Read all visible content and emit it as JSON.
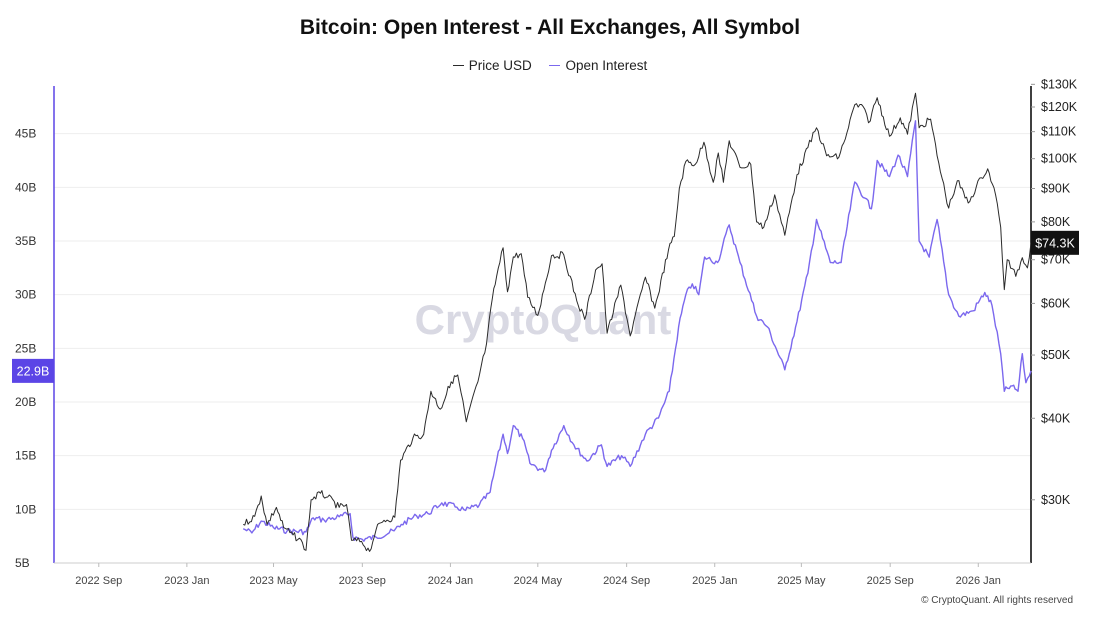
{
  "colors": {
    "price": "#2b2b2b",
    "open_interest": "#7b68ee",
    "accent": "#5b45e6",
    "price_badge": "#111111",
    "grid": "#eeeeee",
    "watermark": "#d9d9e3"
  },
  "watermark": "CryptoQuant",
  "copyright": "© CryptoQuant. All rights reserved",
  "chart_data": {
    "type": "line",
    "title": "Bitcoin: Open Interest - All Exchanges, All Symbol",
    "legend_position": "top-center",
    "grid": "horizontal",
    "x_range": [
      "2022-07-01",
      "2026-03-15"
    ],
    "x_tick_labels": [
      "2022 Sep",
      "2023 Jan",
      "2023 May",
      "2023 Sep",
      "2024 Jan",
      "2024 May",
      "2024 Sep",
      "2025 Jan",
      "2025 May",
      "2025 Sep",
      "2026 Jan"
    ],
    "x_tick_dates": [
      "2022-09-01",
      "2023-01-01",
      "2023-05-01",
      "2023-09-01",
      "2024-01-01",
      "2024-05-01",
      "2024-09-01",
      "2025-01-01",
      "2025-05-01",
      "2025-09-01",
      "2026-01-01"
    ],
    "y_left": {
      "min": 5,
      "max": 50,
      "unit": "B",
      "ticks": [
        5,
        10,
        15,
        20,
        25,
        30,
        35,
        40,
        45
      ],
      "tick_labels": [
        "5B",
        "10B",
        "15B",
        "20B",
        "25B",
        "30B",
        "35B",
        "40B",
        "45B"
      ],
      "current_value_label": "22.9B",
      "current_value": 22.9
    },
    "y_right": {
      "scale": "log",
      "min": 24000,
      "max": 132000,
      "ticks": [
        30000,
        40000,
        50000,
        60000,
        70000,
        80000,
        90000,
        100000,
        110000,
        120000,
        130000
      ],
      "tick_labels": [
        "$30K",
        "$40K",
        "$50K",
        "$60K",
        "$70K",
        "$80K",
        "$90K",
        "$100K",
        "$110K",
        "$120K",
        "$130K"
      ],
      "current_value_label": "$74.3K",
      "current_value": 74300
    },
    "series": [
      {
        "name": "Price USD",
        "axis": "right",
        "points": [
          [
            "2023-03-20",
            27500
          ],
          [
            "2023-04-05",
            28300
          ],
          [
            "2023-04-14",
            30400
          ],
          [
            "2023-04-22",
            27500
          ],
          [
            "2023-05-05",
            29200
          ],
          [
            "2023-05-15",
            27200
          ],
          [
            "2023-05-28",
            26500
          ],
          [
            "2023-06-10",
            25800
          ],
          [
            "2023-06-15",
            25100
          ],
          [
            "2023-06-22",
            30000
          ],
          [
            "2023-07-05",
            30700
          ],
          [
            "2023-07-15",
            30300
          ],
          [
            "2023-07-31",
            29200
          ],
          [
            "2023-08-10",
            29500
          ],
          [
            "2023-08-17",
            26000
          ],
          [
            "2023-08-31",
            25900
          ],
          [
            "2023-09-11",
            25000
          ],
          [
            "2023-09-20",
            27000
          ],
          [
            "2023-10-01",
            27900
          ],
          [
            "2023-10-16",
            28200
          ],
          [
            "2023-10-24",
            34500
          ],
          [
            "2023-11-10",
            37300
          ],
          [
            "2023-11-25",
            37800
          ],
          [
            "2023-12-05",
            44000
          ],
          [
            "2023-12-18",
            41300
          ],
          [
            "2024-01-02",
            45500
          ],
          [
            "2024-01-11",
            46600
          ],
          [
            "2024-01-23",
            39500
          ],
          [
            "2024-02-08",
            45500
          ],
          [
            "2024-02-20",
            52000
          ],
          [
            "2024-02-28",
            61000
          ],
          [
            "2024-03-05",
            66000
          ],
          [
            "2024-03-14",
            73000
          ],
          [
            "2024-03-20",
            62500
          ],
          [
            "2024-03-28",
            70700
          ],
          [
            "2024-04-08",
            71500
          ],
          [
            "2024-04-17",
            61300
          ],
          [
            "2024-05-01",
            57500
          ],
          [
            "2024-05-20",
            71000
          ],
          [
            "2024-06-06",
            71200
          ],
          [
            "2024-06-24",
            60500
          ],
          [
            "2024-07-05",
            56700
          ],
          [
            "2024-07-20",
            67500
          ],
          [
            "2024-07-29",
            69000
          ],
          [
            "2024-08-05",
            54000
          ],
          [
            "2024-08-24",
            64000
          ],
          [
            "2024-09-06",
            53500
          ],
          [
            "2024-09-27",
            65800
          ],
          [
            "2024-10-10",
            59000
          ],
          [
            "2024-10-29",
            72500
          ],
          [
            "2024-11-06",
            76000
          ],
          [
            "2024-11-13",
            90000
          ],
          [
            "2024-11-22",
            99000
          ],
          [
            "2024-12-05",
            98000
          ],
          [
            "2024-12-17",
            106000
          ],
          [
            "2024-12-30",
            92000
          ],
          [
            "2025-01-06",
            102000
          ],
          [
            "2025-01-13",
            92000
          ],
          [
            "2025-01-21",
            106500
          ],
          [
            "2025-02-05",
            97000
          ],
          [
            "2025-02-20",
            98000
          ],
          [
            "2025-02-28",
            80000
          ],
          [
            "2025-03-10",
            78500
          ],
          [
            "2025-03-25",
            88000
          ],
          [
            "2025-04-08",
            76300
          ],
          [
            "2025-04-25",
            94500
          ],
          [
            "2025-05-10",
            104000
          ],
          [
            "2025-05-22",
            111500
          ],
          [
            "2025-06-05",
            101000
          ],
          [
            "2025-06-22",
            100500
          ],
          [
            "2025-07-03",
            109500
          ],
          [
            "2025-07-14",
            121000
          ],
          [
            "2025-07-28",
            119000
          ],
          [
            "2025-08-02",
            113500
          ],
          [
            "2025-08-14",
            124000
          ],
          [
            "2025-08-31",
            108200
          ],
          [
            "2025-09-15",
            115500
          ],
          [
            "2025-09-25",
            109000
          ],
          [
            "2025-10-06",
            126000
          ],
          [
            "2025-10-11",
            111500
          ],
          [
            "2025-10-27",
            115000
          ],
          [
            "2025-11-05",
            101000
          ],
          [
            "2025-11-21",
            84000
          ],
          [
            "2025-12-03",
            92500
          ],
          [
            "2025-12-18",
            85500
          ],
          [
            "2026-01-05",
            93500
          ],
          [
            "2026-01-14",
            96500
          ],
          [
            "2026-01-25",
            88000
          ],
          [
            "2026-02-01",
            78500
          ],
          [
            "2026-02-06",
            63000
          ],
          [
            "2026-02-10",
            70000
          ],
          [
            "2026-02-22",
            66000
          ],
          [
            "2026-03-03",
            70500
          ],
          [
            "2026-03-10",
            68000
          ],
          [
            "2026-03-15",
            74300
          ]
        ]
      },
      {
        "name": "Open Interest",
        "axis": "left",
        "points": [
          [
            "2023-03-20",
            8.2
          ],
          [
            "2023-04-01",
            7.8
          ],
          [
            "2023-04-14",
            8.9
          ],
          [
            "2023-05-01",
            8.3
          ],
          [
            "2023-05-20",
            8.0
          ],
          [
            "2023-06-15",
            7.9
          ],
          [
            "2023-06-25",
            9.2
          ],
          [
            "2023-07-10",
            9.0
          ],
          [
            "2023-07-31",
            9.3
          ],
          [
            "2023-08-15",
            9.6
          ],
          [
            "2023-08-19",
            7.4
          ],
          [
            "2023-09-01",
            7.2
          ],
          [
            "2023-09-20",
            7.4
          ],
          [
            "2023-10-15",
            8.0
          ],
          [
            "2023-10-25",
            8.6
          ],
          [
            "2023-11-15",
            9.4
          ],
          [
            "2023-12-01",
            9.6
          ],
          [
            "2023-12-20",
            10.6
          ],
          [
            "2024-01-10",
            10.2
          ],
          [
            "2024-01-22",
            9.9
          ],
          [
            "2024-02-10",
            10.4
          ],
          [
            "2024-02-25",
            11.6
          ],
          [
            "2024-03-05",
            14.5
          ],
          [
            "2024-03-14",
            17.0
          ],
          [
            "2024-03-20",
            15.2
          ],
          [
            "2024-03-28",
            17.8
          ],
          [
            "2024-04-10",
            16.6
          ],
          [
            "2024-04-20",
            14.3
          ],
          [
            "2024-05-10",
            13.5
          ],
          [
            "2024-05-20",
            15.5
          ],
          [
            "2024-06-06",
            17.8
          ],
          [
            "2024-06-20",
            16.0
          ],
          [
            "2024-07-08",
            14.5
          ],
          [
            "2024-07-28",
            16.0
          ],
          [
            "2024-08-05",
            14.0
          ],
          [
            "2024-08-25",
            15.0
          ],
          [
            "2024-09-06",
            14.0
          ],
          [
            "2024-09-27",
            17.0
          ],
          [
            "2024-10-15",
            18.5
          ],
          [
            "2024-10-30",
            21.0
          ],
          [
            "2024-11-12",
            27.0
          ],
          [
            "2024-11-22",
            30.0
          ],
          [
            "2024-12-01",
            31.0
          ],
          [
            "2024-12-10",
            30.0
          ],
          [
            "2024-12-18",
            33.5
          ],
          [
            "2025-01-05",
            33.0
          ],
          [
            "2025-01-21",
            36.5
          ],
          [
            "2025-02-05",
            33.0
          ],
          [
            "2025-02-28",
            28.0
          ],
          [
            "2025-03-15",
            27.0
          ],
          [
            "2025-04-08",
            23.0
          ],
          [
            "2025-04-25",
            27.5
          ],
          [
            "2025-05-10",
            32.0
          ],
          [
            "2025-05-22",
            37.0
          ],
          [
            "2025-06-10",
            33.0
          ],
          [
            "2025-06-25",
            33.0
          ],
          [
            "2025-07-14",
            40.5
          ],
          [
            "2025-07-28",
            39.0
          ],
          [
            "2025-08-06",
            38.0
          ],
          [
            "2025-08-14",
            42.5
          ],
          [
            "2025-08-31",
            41.0
          ],
          [
            "2025-09-12",
            43.0
          ],
          [
            "2025-09-25",
            41.0
          ],
          [
            "2025-10-06",
            46.2
          ],
          [
            "2025-10-11",
            35.0
          ],
          [
            "2025-10-25",
            33.5
          ],
          [
            "2025-11-05",
            37.0
          ],
          [
            "2025-11-21",
            30.0
          ],
          [
            "2025-12-05",
            28.0
          ],
          [
            "2025-12-25",
            28.5
          ],
          [
            "2026-01-10",
            30.2
          ],
          [
            "2026-01-20",
            29.0
          ],
          [
            "2026-02-01",
            24.5
          ],
          [
            "2026-02-06",
            21.0
          ],
          [
            "2026-02-15",
            21.5
          ],
          [
            "2026-02-25",
            21.0
          ],
          [
            "2026-03-03",
            24.5
          ],
          [
            "2026-03-08",
            21.8
          ],
          [
            "2026-03-15",
            22.9
          ]
        ]
      }
    ]
  }
}
